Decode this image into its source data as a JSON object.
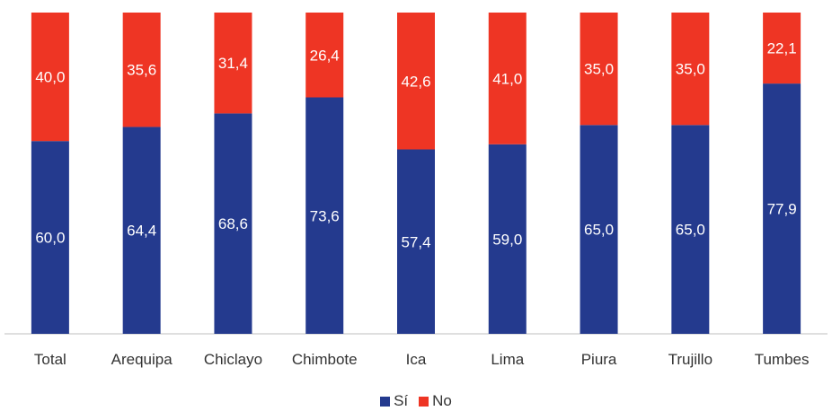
{
  "colors": {
    "si": "#243A8E",
    "no": "#EE3524",
    "axis": "#BFBFBF",
    "tick_text": "#333333",
    "label_text": "#FFFFFF"
  },
  "chart_data": {
    "type": "bar",
    "stacked": true,
    "percent": true,
    "categories": [
      "Total",
      "Arequipa",
      "Chiclayo",
      "Chimbote",
      "Ica",
      "Lima",
      "Piura",
      "Trujillo",
      "Tumbes"
    ],
    "series": [
      {
        "name": "Sí",
        "color": "#243A8E",
        "values": [
          60.0,
          64.4,
          68.6,
          73.6,
          57.4,
          59.0,
          65.0,
          65.0,
          77.9
        ],
        "labels": [
          "60,0",
          "64,4",
          "68,6",
          "73,6",
          "57,4",
          "59,0",
          "65,0",
          "65,0",
          "77,9"
        ]
      },
      {
        "name": "No",
        "color": "#EE3524",
        "values": [
          40.0,
          35.6,
          31.4,
          26.4,
          42.6,
          41.0,
          35.0,
          35.0,
          22.1
        ],
        "labels": [
          "40,0",
          "35,6",
          "31,4",
          "26,4",
          "42,6",
          "41,0",
          "35,0",
          "35,0",
          "22,1"
        ]
      }
    ],
    "ylim": [
      0,
      100
    ],
    "grid": false,
    "legend_position": "bottom"
  }
}
